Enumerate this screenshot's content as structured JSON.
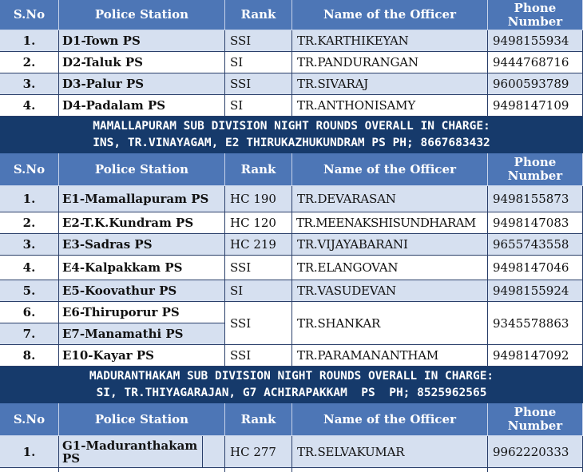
{
  "header": {
    "sno": "S.No",
    "station": "Police Station",
    "rank": "Rank",
    "officer": "Name of the Officer",
    "phone": "Phone Number"
  },
  "section_d_rows": [
    {
      "sno": "1.",
      "station": "D1-Town PS",
      "rank": "SSI",
      "officer": "TR.KARTHIKEYAN",
      "phone": "9498155934"
    },
    {
      "sno": "2.",
      "station": "D2-Taluk PS",
      "rank": "SI",
      "officer": "TR.PANDURANGAN",
      "phone": "9444768716"
    },
    {
      "sno": "3.",
      "station": "D3-Palur PS",
      "rank": "SSI",
      "officer": "TR.SIVARAJ",
      "phone": "9600593789"
    },
    {
      "sno": "4.",
      "station": "D4-Padalam PS",
      "rank": "SI",
      "officer": "TR.ANTHONISAMY",
      "phone": "9498147109"
    }
  ],
  "mamallapuram_banner": {
    "line1": "MAMALLAPURAM SUB DIVISION NIGHT ROUNDS OVERALL IN CHARGE:",
    "line2": "INS, TR.VINAYAGAM, E2 THIRUKAZHUKUNDRAM PS PH; 8667683432"
  },
  "section_e_rows": [
    {
      "sno": "1.",
      "station": "E1-Mamallapuram PS",
      "rank": "HC 190",
      "officer": "TR.DEVARASAN",
      "phone": "9498155873"
    },
    {
      "sno": "2.",
      "station": "E2-T.K.Kundram PS",
      "rank": "HC 120",
      "officer": "TR.MEENAKSHISUNDHARAM",
      "phone": "9498147083"
    },
    {
      "sno": "3.",
      "station": "E3-Sadras PS",
      "rank": "HC 219",
      "officer": "TR.VIJAYABARANI",
      "phone": "9655743558"
    },
    {
      "sno": "4.",
      "station": "E4-Kalpakkam PS",
      "rank": "SSI",
      "officer": "TR.ELANGOVAN",
      "phone": "9498147046"
    },
    {
      "sno": "5.",
      "station": "E5-Koovathur PS",
      "rank": "SI",
      "officer": "TR.VASUDEVAN",
      "phone": "9498155924"
    }
  ],
  "section_e_merged": {
    "sno_a": "6.",
    "station_a": "E6-Thiruporur PS",
    "sno_b": "7.",
    "station_b": "E7-Manamathi PS",
    "rank": "SSI",
    "officer": "TR.SHANKAR",
    "phone": "9345578863"
  },
  "section_e_last": {
    "sno": "8.",
    "station": "E10-Kayar PS",
    "rank": "SSI",
    "officer": "TR.PARAMANANTHAM",
    "phone": "9498147092"
  },
  "maduranthakam_banner": {
    "line1": "MADURANTHAKAM SUB DIVISION NIGHT ROUNDS OVERALL IN CHARGE:",
    "line2": "SI, TR.THIYAGARAJAN, G7 ACHIRAPAKKAM  PS  PH; 8525962565"
  },
  "section_g_rows": [
    {
      "sno": "1.",
      "station": "G1-Maduranthakam PS",
      "rank": "HC 277",
      "officer": "TR.SELVAKUMAR",
      "phone": "9962220333"
    }
  ]
}
